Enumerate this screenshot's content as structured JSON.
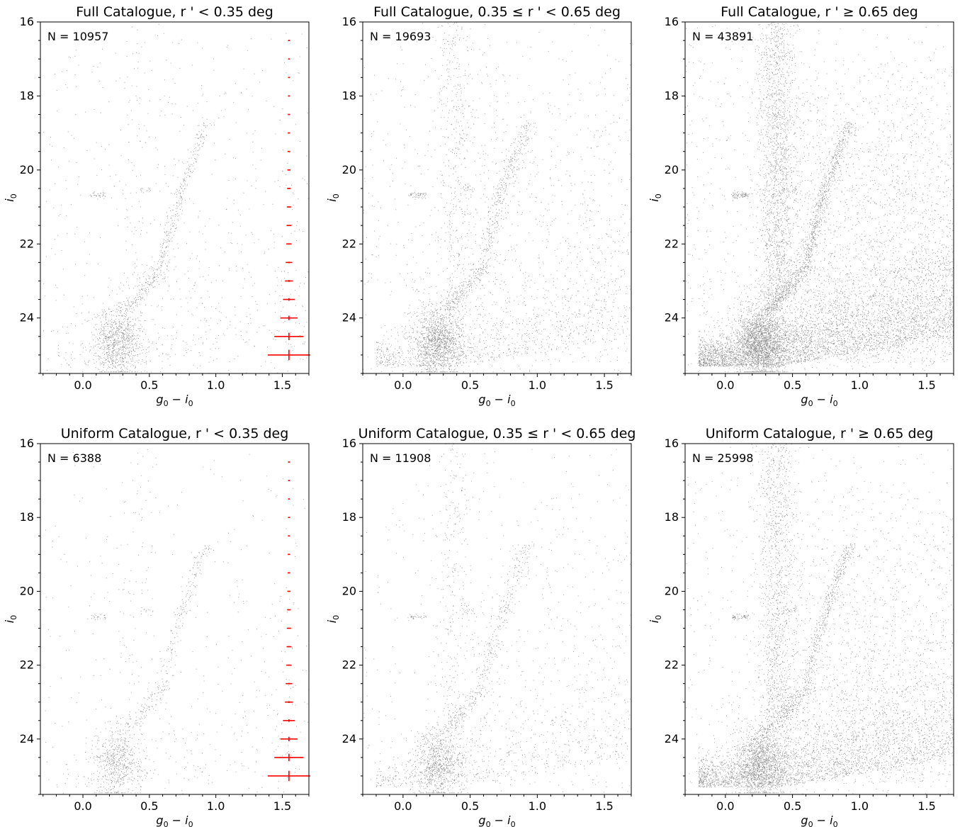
{
  "chart_data": [
    {
      "type": "scatter",
      "title": "Full Catalogue, r ' < 0.35 deg",
      "annotation": "N = 10957",
      "xlabel_main": "g",
      "xlabel_sub1": "0",
      "xlabel_sep": " − i",
      "xlabel_sub2": "0",
      "ylabel_main": "i",
      "ylabel_sub": "0",
      "xlim": [
        -0.32,
        1.7
      ],
      "ylim": [
        25.5,
        16
      ],
      "y_inverted": true,
      "xticks": [
        0.0,
        0.5,
        1.0,
        1.5
      ],
      "xtick_labels": [
        "0.0",
        "0.5",
        "1.0",
        "1.5"
      ],
      "yticks": [
        16,
        18,
        20,
        22,
        24
      ],
      "ytick_labels": [
        "16",
        "18",
        "20",
        "22",
        "24"
      ],
      "density": 1.0,
      "field": 0.1,
      "rgb_spread": 0.0,
      "rgb_extent": 0.0,
      "errorbars": {
        "x": 1.55,
        "y": [
          16.5,
          17.0,
          17.5,
          18.0,
          18.5,
          19.0,
          19.5,
          20.0,
          20.5,
          21.0,
          21.5,
          22.0,
          22.5,
          23.0,
          23.5,
          24.0,
          24.5,
          25.0
        ],
        "xerr": [
          0.004,
          0.005,
          0.006,
          0.007,
          0.008,
          0.009,
          0.01,
          0.012,
          0.014,
          0.016,
          0.018,
          0.02,
          0.025,
          0.03,
          0.045,
          0.065,
          0.11,
          0.16
        ],
        "yerr": [
          0.004,
          0.005,
          0.006,
          0.007,
          0.008,
          0.009,
          0.01,
          0.011,
          0.012,
          0.013,
          0.015,
          0.017,
          0.02,
          0.025,
          0.035,
          0.06,
          0.1,
          0.14
        ]
      },
      "point_color": "#000000",
      "errorbar_color": "#ff0000"
    },
    {
      "type": "scatter",
      "title": "Full Catalogue, 0.35 ≤ r ' < 0.65 deg",
      "annotation": "N = 19693",
      "xlabel_main": "g",
      "xlabel_sub1": "0",
      "xlabel_sep": " − i",
      "xlabel_sub2": "0",
      "ylabel_main": "i",
      "ylabel_sub": "0",
      "xlim": [
        -0.3,
        1.7
      ],
      "ylim": [
        25.5,
        16
      ],
      "y_inverted": true,
      "xticks": [
        0.0,
        0.5,
        1.0,
        1.5
      ],
      "xtick_labels": [
        "0.0",
        "0.5",
        "1.0",
        "1.5"
      ],
      "yticks": [
        16,
        18,
        20,
        22,
        24
      ],
      "ytick_labels": [
        "16",
        "18",
        "20",
        "22",
        "24"
      ],
      "density": 1.4,
      "field": 0.35,
      "rgb_spread": 0.2,
      "rgb_extent": 0.6,
      "point_color": "#000000"
    },
    {
      "type": "scatter",
      "title": "Full Catalogue, r ' ≥ 0.65 deg",
      "annotation": "N = 43891",
      "xlabel_main": "g",
      "xlabel_sub1": "0",
      "xlabel_sep": " − i",
      "xlabel_sub2": "0",
      "ylabel_main": "i",
      "ylabel_sub": "0",
      "xlim": [
        -0.3,
        1.7
      ],
      "ylim": [
        25.5,
        16
      ],
      "y_inverted": true,
      "xticks": [
        0.0,
        0.5,
        1.0,
        1.5
      ],
      "xtick_labels": [
        "0.0",
        "0.5",
        "1.0",
        "1.5"
      ],
      "yticks": [
        16,
        18,
        20,
        22,
        24
      ],
      "ytick_labels": [
        "16",
        "18",
        "20",
        "22",
        "24"
      ],
      "density": 2.2,
      "field": 1.0,
      "rgb_spread": 0.0,
      "rgb_extent": 0.0,
      "point_color": "#000000"
    },
    {
      "type": "scatter",
      "title": "Uniform Catalogue, r ' < 0.35 deg",
      "annotation": "N = 6388",
      "xlabel_main": "g",
      "xlabel_sub1": "0",
      "xlabel_sep": " − i",
      "xlabel_sub2": "0",
      "ylabel_main": "i",
      "ylabel_sub": "0",
      "xlim": [
        -0.32,
        1.7
      ],
      "ylim": [
        25.5,
        16
      ],
      "y_inverted": true,
      "xticks": [
        0.0,
        0.5,
        1.0,
        1.5
      ],
      "xtick_labels": [
        "0.0",
        "0.5",
        "1.0",
        "1.5"
      ],
      "yticks": [
        16,
        18,
        20,
        22,
        24
      ],
      "ytick_labels": [
        "16",
        "18",
        "20",
        "22",
        "24"
      ],
      "density": 0.65,
      "field": 0.1,
      "rgb_spread": 0.0,
      "rgb_extent": 0.0,
      "errorbars": {
        "x": 1.55,
        "y": [
          16.5,
          17.0,
          17.5,
          18.0,
          18.5,
          19.0,
          19.5,
          20.0,
          20.5,
          21.0,
          21.5,
          22.0,
          22.5,
          23.0,
          23.5,
          24.0,
          24.5,
          25.0
        ],
        "xerr": [
          0.004,
          0.005,
          0.006,
          0.007,
          0.008,
          0.009,
          0.01,
          0.012,
          0.014,
          0.016,
          0.018,
          0.02,
          0.025,
          0.03,
          0.045,
          0.065,
          0.11,
          0.16
        ],
        "yerr": [
          0.004,
          0.005,
          0.006,
          0.007,
          0.008,
          0.009,
          0.01,
          0.011,
          0.012,
          0.013,
          0.015,
          0.017,
          0.02,
          0.025,
          0.035,
          0.06,
          0.1,
          0.14
        ]
      },
      "point_color": "#000000",
      "errorbar_color": "#ff0000"
    },
    {
      "type": "scatter",
      "title": "Uniform Catalogue, 0.35 ≤ r ' < 0.65 deg",
      "annotation": "N = 11908",
      "xlabel_main": "g",
      "xlabel_sub1": "0",
      "xlabel_sep": " − i",
      "xlabel_sub2": "0",
      "ylabel_main": "i",
      "ylabel_sub": "0",
      "xlim": [
        -0.3,
        1.7
      ],
      "ylim": [
        25.5,
        16
      ],
      "y_inverted": true,
      "xticks": [
        0.0,
        0.5,
        1.0,
        1.5
      ],
      "xtick_labels": [
        "0.0",
        "0.5",
        "1.0",
        "1.5"
      ],
      "yticks": [
        16,
        18,
        20,
        22,
        24
      ],
      "ytick_labels": [
        "16",
        "18",
        "20",
        "22",
        "24"
      ],
      "density": 0.9,
      "field": 0.35,
      "rgb_spread": 0.2,
      "rgb_extent": 0.6,
      "point_color": "#000000"
    },
    {
      "type": "scatter",
      "title": "Uniform Catalogue, r ' ≥ 0.65 deg",
      "annotation": "N = 25998",
      "xlabel_main": "g",
      "xlabel_sub1": "0",
      "xlabel_sep": " − i",
      "xlabel_sub2": "0",
      "ylabel_main": "i",
      "ylabel_sub": "0",
      "xlim": [
        -0.3,
        1.7
      ],
      "ylim": [
        25.5,
        16
      ],
      "y_inverted": true,
      "xticks": [
        0.0,
        0.5,
        1.0,
        1.5
      ],
      "xtick_labels": [
        "0.0",
        "0.5",
        "1.0",
        "1.5"
      ],
      "yticks": [
        16,
        18,
        20,
        22,
        24
      ],
      "ytick_labels": [
        "16",
        "18",
        "20",
        "22",
        "24"
      ],
      "density": 1.5,
      "field": 1.0,
      "rgb_spread": 0.0,
      "rgb_extent": 0.0,
      "point_color": "#000000"
    }
  ]
}
